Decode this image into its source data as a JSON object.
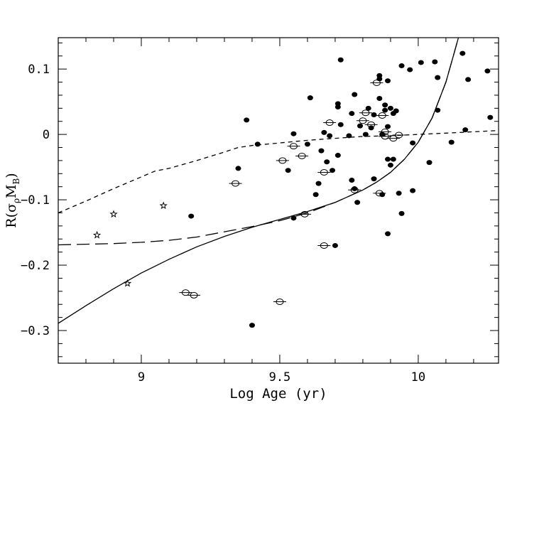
{
  "chart_data": {
    "type": "scatter",
    "xlabel": "Log Age (yr)",
    "ylabel": {
      "prefix": "R(σ",
      "sub1": "ρ",
      "mid": "M",
      "sub2": "B",
      "suffix": ")"
    },
    "xlim": [
      8.7,
      10.29
    ],
    "ylim": [
      -0.35,
      0.148
    ],
    "x_ticks": [
      {
        "value": 9,
        "label": "9"
      },
      {
        "value": 9.5,
        "label": "9.5"
      },
      {
        "value": 10,
        "label": "10"
      }
    ],
    "y_ticks": [
      {
        "value": 0.1,
        "label": "0.1"
      },
      {
        "value": 0,
        "label": "0"
      },
      {
        "value": -0.1,
        "label": "−0.1"
      },
      {
        "value": -0.2,
        "label": "−0.2"
      },
      {
        "value": -0.3,
        "label": "−0.3"
      }
    ],
    "x_minor_step": 0.1,
    "y_minor_step": 0.02,
    "grid": false,
    "legend": "none",
    "series": [
      {
        "marker": "filled-ellipse",
        "points": [
          [
            9.18,
            -0.125
          ],
          [
            9.35,
            -0.052
          ],
          [
            9.38,
            0.022
          ],
          [
            9.4,
            -0.292
          ],
          [
            9.42,
            -0.015
          ],
          [
            9.53,
            -0.055
          ],
          [
            9.55,
            0.001
          ],
          [
            9.55,
            -0.128
          ],
          [
            9.6,
            -0.015
          ],
          [
            9.61,
            0.056
          ],
          [
            9.63,
            -0.092
          ],
          [
            9.64,
            -0.075
          ],
          [
            9.65,
            -0.025
          ],
          [
            9.66,
            0.003
          ],
          [
            9.67,
            -0.042
          ],
          [
            9.68,
            -0.002
          ],
          [
            9.69,
            -0.055
          ],
          [
            9.7,
            -0.17
          ],
          [
            9.71,
            0.042
          ],
          [
            9.71,
            0.047
          ],
          [
            9.71,
            -0.032
          ],
          [
            9.72,
            0.114
          ],
          [
            9.72,
            0.015
          ],
          [
            9.75,
            -0.002
          ],
          [
            9.76,
            0.032
          ],
          [
            9.76,
            -0.07
          ],
          [
            9.77,
            -0.083
          ],
          [
            9.77,
            0.061
          ],
          [
            9.78,
            -0.104
          ],
          [
            9.79,
            0.013
          ],
          [
            9.81,
            0.0
          ],
          [
            9.82,
            0.04
          ],
          [
            9.83,
            0.01
          ],
          [
            9.84,
            0.03
          ],
          [
            9.84,
            -0.068
          ],
          [
            9.86,
            0.09
          ],
          [
            9.86,
            0.085
          ],
          [
            9.86,
            0.055
          ],
          [
            9.87,
            -0.092
          ],
          [
            9.87,
            0.0
          ],
          [
            9.88,
            0.045
          ],
          [
            9.88,
            0.037
          ],
          [
            9.89,
            0.082
          ],
          [
            9.89,
            -0.038
          ],
          [
            9.89,
            0.012
          ],
          [
            9.89,
            -0.152
          ],
          [
            9.9,
            0.04
          ],
          [
            9.9,
            -0.047
          ],
          [
            9.91,
            0.032
          ],
          [
            9.91,
            -0.038
          ],
          [
            9.92,
            0.036
          ],
          [
            9.93,
            -0.09
          ],
          [
            9.94,
            -0.121
          ],
          [
            9.94,
            0.105
          ],
          [
            9.97,
            0.099
          ],
          [
            9.98,
            -0.086
          ],
          [
            9.98,
            -0.013
          ],
          [
            10.01,
            0.11
          ],
          [
            10.04,
            -0.043
          ],
          [
            10.06,
            0.111
          ],
          [
            10.07,
            0.087
          ],
          [
            10.07,
            0.037
          ],
          [
            10.12,
            -0.012
          ],
          [
            10.16,
            0.124
          ],
          [
            10.17,
            0.007
          ],
          [
            10.18,
            0.084
          ],
          [
            10.25,
            0.097
          ],
          [
            10.26,
            0.026
          ]
        ]
      },
      {
        "marker": "open-circle-errorbar",
        "points": [
          [
            9.16,
            -0.242
          ],
          [
            9.19,
            -0.246
          ],
          [
            9.34,
            -0.075
          ],
          [
            9.5,
            -0.256
          ],
          [
            9.51,
            -0.04
          ],
          [
            9.55,
            -0.018
          ],
          [
            9.58,
            -0.033
          ],
          [
            9.59,
            -0.122
          ],
          [
            9.66,
            -0.17
          ],
          [
            9.66,
            -0.058
          ],
          [
            9.68,
            0.018
          ],
          [
            9.77,
            -0.085
          ],
          [
            9.8,
            0.021
          ],
          [
            9.81,
            0.033
          ],
          [
            9.83,
            0.015
          ],
          [
            9.85,
            0.079
          ],
          [
            9.86,
            -0.09
          ],
          [
            9.87,
            0.029
          ],
          [
            9.88,
            0.004
          ],
          [
            9.88,
            -0.003
          ],
          [
            9.91,
            -0.006
          ],
          [
            9.93,
            -0.001
          ]
        ]
      },
      {
        "marker": "open-star",
        "points": [
          [
            8.84,
            -0.154
          ],
          [
            8.9,
            -0.122
          ],
          [
            8.95,
            -0.228
          ],
          [
            9.08,
            -0.109
          ]
        ]
      }
    ],
    "curves": [
      {
        "style": "solid",
        "points": [
          [
            8.7,
            -0.289
          ],
          [
            8.8,
            -0.262
          ],
          [
            8.9,
            -0.236
          ],
          [
            9.0,
            -0.212
          ],
          [
            9.1,
            -0.191
          ],
          [
            9.2,
            -0.172
          ],
          [
            9.3,
            -0.156
          ],
          [
            9.4,
            -0.142
          ],
          [
            9.5,
            -0.13
          ],
          [
            9.6,
            -0.118
          ],
          [
            9.7,
            -0.104
          ],
          [
            9.8,
            -0.085
          ],
          [
            9.85,
            -0.073
          ],
          [
            9.9,
            -0.058
          ],
          [
            9.95,
            -0.038
          ],
          [
            10.0,
            -0.012
          ],
          [
            10.05,
            0.025
          ],
          [
            10.1,
            0.08
          ],
          [
            10.13,
            0.125
          ],
          [
            10.145,
            0.148
          ]
        ]
      },
      {
        "style": "long-dash",
        "points": [
          [
            8.7,
            -0.169
          ],
          [
            8.9,
            -0.167
          ],
          [
            9.0,
            -0.165
          ],
          [
            9.1,
            -0.162
          ],
          [
            9.2,
            -0.157
          ],
          [
            9.3,
            -0.149
          ],
          [
            9.4,
            -0.141
          ],
          [
            9.5,
            -0.132
          ],
          [
            9.6,
            -0.12
          ],
          [
            9.7,
            -0.104
          ],
          [
            9.8,
            -0.085
          ],
          [
            9.85,
            -0.073
          ],
          [
            9.9,
            -0.058
          ],
          [
            9.95,
            -0.038
          ],
          [
            10.0,
            -0.012
          ],
          [
            10.05,
            0.025
          ],
          [
            10.1,
            0.08
          ],
          [
            10.13,
            0.125
          ],
          [
            10.145,
            0.148
          ]
        ]
      },
      {
        "style": "short-dash",
        "points": [
          [
            8.7,
            -0.12
          ],
          [
            8.8,
            -0.102
          ],
          [
            8.9,
            -0.083
          ],
          [
            9.0,
            -0.065
          ],
          [
            9.05,
            -0.056
          ],
          [
            9.1,
            -0.052
          ],
          [
            9.2,
            -0.04
          ],
          [
            9.3,
            -0.027
          ],
          [
            9.35,
            -0.02
          ],
          [
            9.4,
            -0.017
          ],
          [
            9.5,
            -0.013
          ],
          [
            9.6,
            -0.009
          ],
          [
            9.7,
            -0.006
          ],
          [
            9.8,
            -0.003
          ],
          [
            9.9,
            -0.002
          ],
          [
            10.0,
            0.0
          ],
          [
            10.1,
            0.002
          ],
          [
            10.2,
            0.004
          ],
          [
            10.29,
            0.006
          ]
        ]
      }
    ]
  }
}
